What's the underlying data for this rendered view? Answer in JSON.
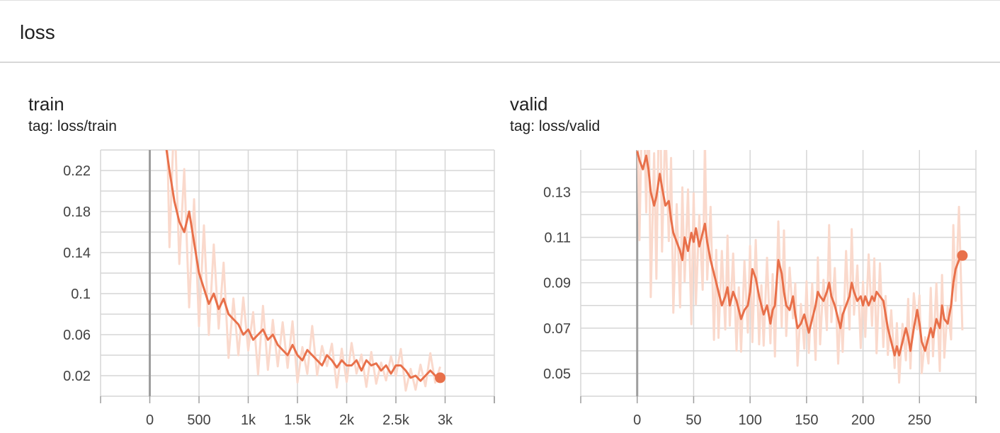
{
  "group": {
    "title": "loss"
  },
  "colors": {
    "line": "#e8704a",
    "raw": "#fad9cc",
    "grid": "#d6d6d6",
    "zero_axis": "#9e9e9e"
  },
  "chart_data": [
    {
      "type": "line",
      "title": "train",
      "tag": "tag: loss/train",
      "xlim": [
        -500,
        3500
      ],
      "ylim": [
        0.0,
        0.24
      ],
      "x_ticks": [
        0,
        500,
        1000,
        1500,
        2000,
        2500,
        3000
      ],
      "x_tick_labels": [
        "0",
        "500",
        "1k",
        "1.5k",
        "2k",
        "2.5k",
        "3k"
      ],
      "y_ticks": [
        0.02,
        0.06,
        0.1,
        0.14,
        0.18,
        0.22
      ],
      "y_tick_labels": [
        "0.02",
        "0.06",
        "0.1",
        "0.14",
        "0.18",
        "0.22"
      ],
      "series": [
        {
          "x": [
            170,
            200,
            250,
            300,
            350,
            400,
            450,
            500,
            550,
            600,
            650,
            700,
            750,
            800,
            850,
            900,
            950,
            1000,
            1050,
            1100,
            1150,
            1200,
            1250,
            1300,
            1350,
            1400,
            1450,
            1500,
            1550,
            1600,
            1650,
            1700,
            1750,
            1800,
            1850,
            1900,
            1950,
            2000,
            2050,
            2100,
            2150,
            2200,
            2250,
            2300,
            2350,
            2400,
            2450,
            2500,
            2550,
            2600,
            2650,
            2700,
            2750,
            2800,
            2850,
            2900,
            2950
          ],
          "y": [
            0.24,
            0.22,
            0.19,
            0.17,
            0.16,
            0.18,
            0.15,
            0.12,
            0.105,
            0.09,
            0.1,
            0.085,
            0.095,
            0.08,
            0.075,
            0.07,
            0.06,
            0.065,
            0.055,
            0.06,
            0.065,
            0.055,
            0.06,
            0.05,
            0.045,
            0.04,
            0.05,
            0.04,
            0.035,
            0.045,
            0.04,
            0.035,
            0.03,
            0.04,
            0.035,
            0.028,
            0.035,
            0.03,
            0.03,
            0.035,
            0.025,
            0.035,
            0.03,
            0.032,
            0.025,
            0.03,
            0.022,
            0.03,
            0.03,
            0.025,
            0.018,
            0.02,
            0.015,
            0.02,
            0.025,
            0.02,
            0.018
          ]
        }
      ],
      "end_point": {
        "x": 2950,
        "y": 0.018
      }
    },
    {
      "type": "line",
      "title": "valid",
      "tag": "tag: loss/valid",
      "xlim": [
        -50,
        300
      ],
      "ylim": [
        0.04,
        0.1485
      ],
      "x_ticks": [
        0,
        50,
        100,
        150,
        200,
        250
      ],
      "x_tick_labels": [
        "0",
        "50",
        "100",
        "150",
        "200",
        "250"
      ],
      "y_ticks": [
        0.05,
        0.07,
        0.09,
        0.11,
        0.13
      ],
      "y_tick_labels": [
        "0.05",
        "0.07",
        "0.09",
        "0.11",
        "0.13"
      ],
      "series": [
        {
          "x": [
            0,
            2,
            5,
            8,
            10,
            12,
            15,
            17,
            20,
            22,
            25,
            28,
            30,
            32,
            35,
            38,
            40,
            42,
            45,
            48,
            50,
            52,
            55,
            58,
            60,
            62,
            65,
            68,
            70,
            72,
            75,
            78,
            80,
            82,
            85,
            88,
            90,
            92,
            95,
            98,
            100,
            102,
            105,
            108,
            110,
            112,
            115,
            118,
            120,
            122,
            125,
            128,
            130,
            132,
            135,
            138,
            140,
            142,
            145,
            148,
            150,
            152,
            155,
            158,
            160,
            162,
            165,
            168,
            170,
            172,
            175,
            178,
            180,
            182,
            185,
            188,
            190,
            192,
            195,
            198,
            200,
            202,
            205,
            208,
            210,
            212,
            215,
            218,
            220,
            222,
            225,
            228,
            230,
            232,
            235,
            238,
            240,
            242,
            245,
            248,
            250,
            252,
            255,
            258,
            260,
            262,
            265,
            268,
            270,
            272,
            275,
            278,
            280,
            282,
            285,
            288
          ],
          "y": [
            0.148,
            0.144,
            0.14,
            0.146,
            0.14,
            0.13,
            0.124,
            0.128,
            0.138,
            0.132,
            0.124,
            0.126,
            0.118,
            0.112,
            0.108,
            0.104,
            0.1,
            0.11,
            0.104,
            0.112,
            0.108,
            0.114,
            0.106,
            0.112,
            0.116,
            0.108,
            0.1,
            0.094,
            0.09,
            0.086,
            0.08,
            0.084,
            0.088,
            0.08,
            0.086,
            0.082,
            0.078,
            0.074,
            0.078,
            0.08,
            0.086,
            0.096,
            0.092,
            0.084,
            0.08,
            0.076,
            0.08,
            0.072,
            0.078,
            0.08,
            0.1,
            0.094,
            0.086,
            0.08,
            0.078,
            0.084,
            0.076,
            0.07,
            0.072,
            0.076,
            0.072,
            0.068,
            0.074,
            0.08,
            0.086,
            0.084,
            0.082,
            0.086,
            0.09,
            0.084,
            0.08,
            0.074,
            0.07,
            0.076,
            0.08,
            0.084,
            0.09,
            0.086,
            0.082,
            0.084,
            0.08,
            0.084,
            0.08,
            0.084,
            0.082,
            0.086,
            0.084,
            0.082,
            0.076,
            0.07,
            0.064,
            0.058,
            0.062,
            0.058,
            0.064,
            0.07,
            0.066,
            0.06,
            0.07,
            0.078,
            0.072,
            0.064,
            0.06,
            0.066,
            0.07,
            0.066,
            0.074,
            0.07,
            0.08,
            0.074,
            0.072,
            0.08,
            0.09,
            0.096,
            0.1,
            0.102
          ]
        }
      ],
      "end_point": {
        "x": 288,
        "y": 0.102
      }
    }
  ]
}
